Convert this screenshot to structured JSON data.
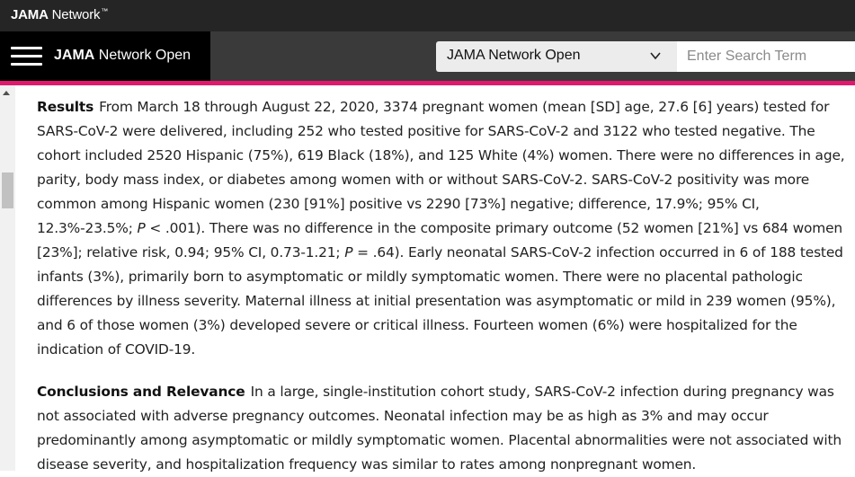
{
  "topbar": {
    "brand_bold": "JAMA",
    "brand_rest": " Network",
    "brand_mark": "™"
  },
  "navbar": {
    "journal_bold": "JAMA",
    "journal_rest": " Network Open",
    "selector_value": "JAMA Network Open",
    "search_placeholder": "Enter Search Term"
  },
  "icons": {
    "menu": "hamburger-icon",
    "chevron": "chevron-down-icon",
    "scroll_up": "scroll-up-arrow-icon"
  },
  "colors": {
    "accent": "#e0196d",
    "topbar": "#252525",
    "nav_left": "#000000",
    "nav_bg": "#3a3a3a"
  },
  "results": {
    "label": "Results",
    "t1": "From March 18 through August 22, 2020, 3374 pregnant women (mean [SD] age, 27.6 [6] years) tested for SARS-CoV-2 were delivered, including 252 who tested positive for SARS-CoV-2 and 3122 who tested negative. The cohort included 2520 Hispanic (75%), 619 Black (18%), and 125 White (4%) women. There were no differences in age, parity, body mass index, or diabetes among women with or without SARS-CoV-2. SARS-CoV-2 positivity was more common among Hispanic women (230 [91%] positive vs 2290 [73%] negative; difference, 17.9%; 95% CI, 12.3%-23.5%; ",
    "p1": "P",
    "t2": " < .001). There was no difference in the composite primary outcome (52 women [21%] vs 684 women [23%]; relative risk, 0.94; 95% CI, 0.73-1.21; ",
    "p2": "P",
    "t3": " = .64). Early neonatal SARS-CoV-2 infection occurred in 6 of 188 tested infants (3%), primarily born to asymptomatic or mildly symptomatic women. There were no placental pathologic differences by illness severity. Maternal illness at initial presentation was asymptomatic or mild in 239 women (95%), and 6 of those women (3%) developed severe or critical illness. Fourteen women (6%) were hospitalized for the indication of COVID-19."
  },
  "conclusions": {
    "label": "Conclusions and Relevance",
    "text": "In a large, single-institution cohort study, SARS-CoV-2 infection during pregnancy was not associated with adverse pregnancy outcomes. Neonatal infection may be as high as 3% and may occur predominantly among asymptomatic or mildly symptomatic women. Placental abnormalities were not associated with disease severity, and hospitalization frequency was similar to rates among nonpregnant women."
  }
}
